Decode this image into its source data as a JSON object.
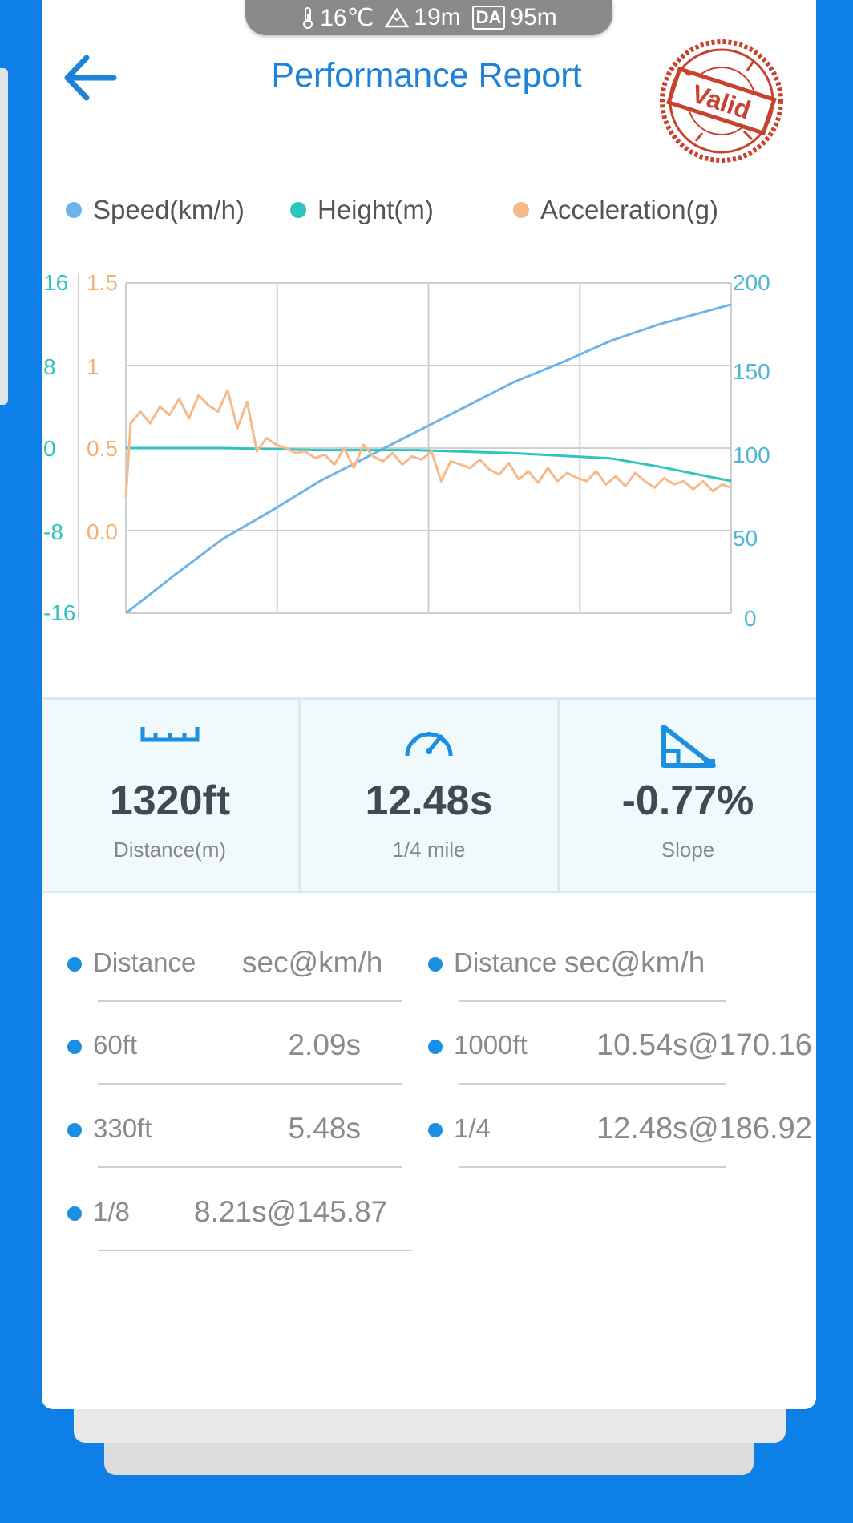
{
  "status_bar": {
    "temperature": "16℃",
    "altitude": "19m",
    "da_label": "DA",
    "density_altitude": "95m"
  },
  "header": {
    "title": "Performance Report",
    "stamp_text": "Valid"
  },
  "legend": [
    {
      "label": "Speed(km/h)",
      "color": "#6cb4ec"
    },
    {
      "label": "Height(m)",
      "color": "#2ec4c0"
    },
    {
      "label": "Acceleration(g)",
      "color": "#f6ba8a"
    }
  ],
  "chart_data": {
    "type": "line",
    "axes": {
      "height_ticks": [
        "16",
        "8",
        "0",
        "-8",
        "-16"
      ],
      "accel_ticks": [
        "1.5",
        "1",
        "0.5",
        "0.0"
      ],
      "speed_ticks": [
        "200",
        "150",
        "100",
        "50",
        "0"
      ]
    },
    "x_range": [
      0,
      12.48
    ],
    "speed_ylim": [
      0,
      200
    ],
    "height_ylim": [
      -16,
      16
    ],
    "accel_ylim": [
      -0.5,
      1.5
    ],
    "grid": true,
    "series": [
      {
        "name": "Speed(km/h)",
        "axis": "right",
        "color": "#6cb4ec",
        "x": [
          0,
          1,
          2,
          3,
          4,
          5,
          6,
          7,
          8,
          9,
          10,
          11,
          12.48
        ],
        "y": [
          0,
          23,
          45,
          62,
          80,
          95,
          110,
          125,
          140,
          152,
          165,
          175,
          187
        ]
      },
      {
        "name": "Height(m)",
        "axis": "left",
        "color": "#2ec4c0",
        "x": [
          0,
          2,
          4,
          6,
          8,
          10,
          11,
          12.48
        ],
        "y": [
          0,
          0,
          -0.2,
          -0.2,
          -0.5,
          -1.0,
          -1.8,
          -3.2
        ]
      },
      {
        "name": "Acceleration(g)",
        "axis": "left2",
        "color": "#f6ba8a",
        "x": [
          0,
          0.1,
          0.3,
          0.5,
          0.7,
          0.9,
          1.1,
          1.3,
          1.5,
          1.7,
          1.9,
          2.1,
          2.3,
          2.5,
          2.7,
          2.9,
          3.1,
          3.3,
          3.5,
          3.7,
          3.9,
          4.1,
          4.3,
          4.5,
          4.7,
          4.9,
          5.1,
          5.3,
          5.5,
          5.7,
          5.9,
          6.1,
          6.3,
          6.5,
          6.7,
          6.9,
          7.1,
          7.3,
          7.5,
          7.7,
          7.9,
          8.1,
          8.3,
          8.5,
          8.7,
          8.9,
          9.1,
          9.3,
          9.5,
          9.7,
          9.9,
          10.1,
          10.3,
          10.5,
          10.7,
          10.9,
          11.1,
          11.3,
          11.5,
          11.7,
          11.9,
          12.1,
          12.3,
          12.48
        ],
        "y": [
          0.2,
          0.65,
          0.72,
          0.65,
          0.75,
          0.7,
          0.8,
          0.68,
          0.82,
          0.76,
          0.72,
          0.85,
          0.62,
          0.78,
          0.48,
          0.56,
          0.52,
          0.5,
          0.47,
          0.48,
          0.44,
          0.46,
          0.4,
          0.5,
          0.38,
          0.52,
          0.45,
          0.42,
          0.47,
          0.4,
          0.45,
          0.43,
          0.48,
          0.3,
          0.42,
          0.4,
          0.38,
          0.43,
          0.37,
          0.34,
          0.41,
          0.31,
          0.36,
          0.29,
          0.38,
          0.3,
          0.35,
          0.32,
          0.3,
          0.36,
          0.28,
          0.33,
          0.27,
          0.35,
          0.3,
          0.26,
          0.32,
          0.28,
          0.3,
          0.25,
          0.3,
          0.24,
          0.28,
          0.26
        ]
      }
    ]
  },
  "stats": [
    {
      "value": "1320ft",
      "label": "Distance(m)",
      "icon": "ruler-icon"
    },
    {
      "value": "12.48s",
      "label": "1/4 mile",
      "icon": "speedometer-icon"
    },
    {
      "value": "-0.77%",
      "label": "Slope",
      "icon": "slope-icon"
    }
  ],
  "splits": {
    "header": {
      "distance": "Distance",
      "unit": "sec@km/h"
    },
    "left": [
      {
        "distance": "60ft",
        "time": "2.09s"
      },
      {
        "distance": "330ft",
        "time": "5.48s"
      },
      {
        "distance": "1/8",
        "time": "8.21s@145.87"
      }
    ],
    "right": [
      {
        "distance": "1000ft",
        "time": "10.54s@170.16"
      },
      {
        "distance": "1/4",
        "time": "12.48s@186.92"
      }
    ]
  }
}
